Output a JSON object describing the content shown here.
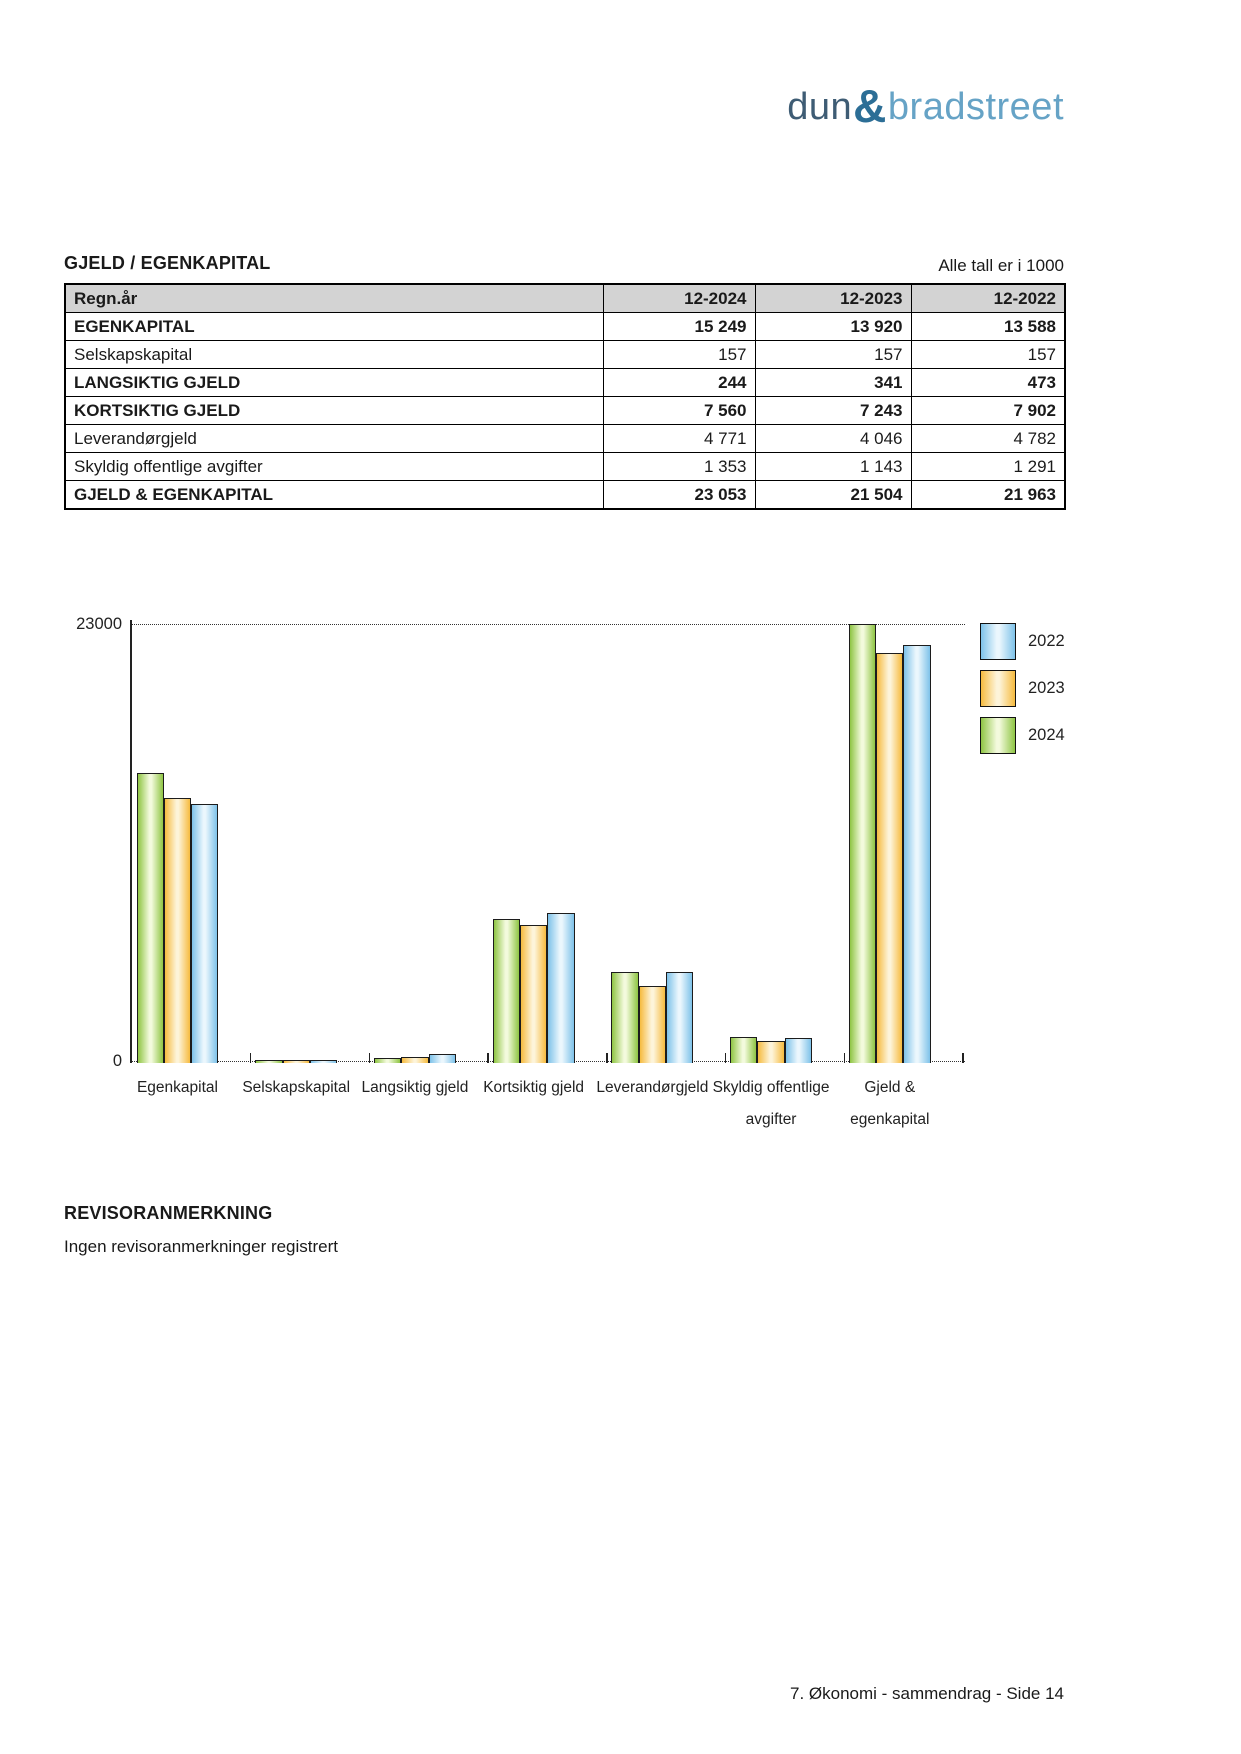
{
  "logo": {
    "dun": "dun",
    "amp": "&",
    "bradstreet": "bradstreet",
    "colors": {
      "dun": "#3e5c74",
      "amp": "#2c6e96",
      "bradstreet": "#66a3c6"
    }
  },
  "header": {
    "title": "GJELD / EGENKAPITAL",
    "note": "Alle tall er i 1000"
  },
  "table": {
    "columns": [
      "Regn.år",
      "12-2024",
      "12-2023",
      "12-2022"
    ],
    "rows": [
      {
        "label": "EGENKAPITAL",
        "bold": true,
        "values": [
          "15 249",
          "13 920",
          "13 588"
        ]
      },
      {
        "label": "Selskapskapital",
        "bold": false,
        "values": [
          "157",
          "157",
          "157"
        ]
      },
      {
        "label": "LANGSIKTIG GJELD",
        "bold": true,
        "values": [
          "244",
          "341",
          "473"
        ]
      },
      {
        "label": "KORTSIKTIG GJELD",
        "bold": true,
        "values": [
          "7 560",
          "7 243",
          "7 902"
        ]
      },
      {
        "label": "Leverandørgjeld",
        "bold": false,
        "values": [
          "4 771",
          "4 046",
          "4 782"
        ]
      },
      {
        "label": "Skyldig offentlige avgifter",
        "bold": false,
        "values": [
          "1 353",
          "1 143",
          "1 291"
        ]
      },
      {
        "label": "GJELD & EGENKAPITAL",
        "bold": true,
        "values": [
          "23 053",
          "21 504",
          "21 963"
        ]
      }
    ]
  },
  "chart_data": {
    "type": "bar",
    "title": "",
    "categories": [
      "Egenkapital",
      "Selskapskapital",
      "Langsiktig gjeld",
      "Kortsiktig gjeld",
      "Leverandørgjeld",
      "Skyldig offentlige avgifter",
      "Gjeld & egenkapital"
    ],
    "category_label_lines": [
      [
        "Egenkapital"
      ],
      [
        "Selskapskapital"
      ],
      [
        "Langsiktig gjeld"
      ],
      [
        "Kortsiktig gjeld"
      ],
      [
        "Leverandørgjeld"
      ],
      [
        "Skyldig offentlige",
        "avgifter"
      ],
      [
        "Gjeld &",
        "egenkapital"
      ]
    ],
    "series": [
      {
        "name": "2024",
        "color_edge": "#8fc544",
        "color_mid": "#f3fadd",
        "values": [
          15249,
          157,
          244,
          7560,
          4771,
          1353,
          23053
        ]
      },
      {
        "name": "2023",
        "color_edge": "#f6bb3f",
        "color_mid": "#fdf4da",
        "values": [
          13920,
          157,
          341,
          7243,
          4046,
          1143,
          21504
        ]
      },
      {
        "name": "2022",
        "color_edge": "#7ec2e9",
        "color_mid": "#ebf7fd",
        "values": [
          13588,
          157,
          473,
          7902,
          4782,
          1291,
          21963
        ]
      }
    ],
    "legend": [
      "2022",
      "2023",
      "2024"
    ],
    "legend_position": "right",
    "ylim": [
      0,
      23000
    ],
    "ytick_labels": [
      "23000",
      "0"
    ],
    "grid": "dotted top gridline at 23000 and dotted baseline"
  },
  "revisor": {
    "heading": "REVISORANMERKNING",
    "text": "Ingen revisoranmerkninger registrert"
  },
  "footer": {
    "text": "7. Økonomi - sammendrag - Side 14"
  }
}
